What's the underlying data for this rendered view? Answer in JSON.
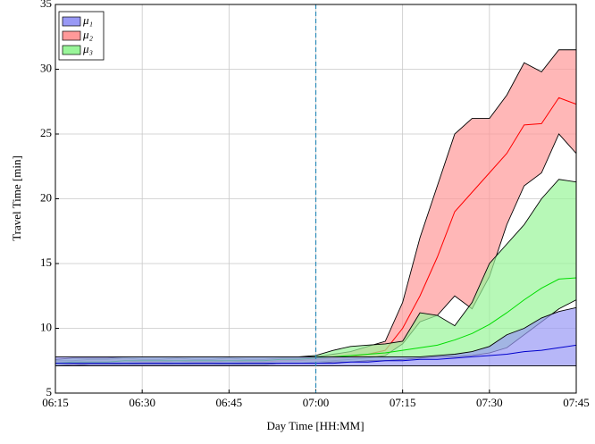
{
  "chart_data": {
    "type": "band",
    "x_label": "Day Time [HH:MM]",
    "y_label": "Travel Time [min]",
    "x": [
      "06:15",
      "06:18",
      "06:21",
      "06:24",
      "06:27",
      "06:30",
      "06:33",
      "06:36",
      "06:39",
      "06:42",
      "06:45",
      "06:48",
      "06:51",
      "06:54",
      "06:57",
      "07:00",
      "07:03",
      "07:06",
      "07:09",
      "07:12",
      "07:15",
      "07:18",
      "07:21",
      "07:24",
      "07:27",
      "07:30",
      "07:33",
      "07:36",
      "07:39",
      "07:42",
      "07:45"
    ],
    "xlim": [
      "06:15",
      "07:45"
    ],
    "xticks": [
      "06:15",
      "06:30",
      "06:45",
      "07:00",
      "07:15",
      "07:30",
      "07:45"
    ],
    "ylim": [
      5,
      35
    ],
    "yticks": [
      5,
      10,
      15,
      20,
      25,
      30,
      35
    ],
    "grid": true,
    "vline": "07:00",
    "legend": "upper-left",
    "series": [
      {
        "name": "μ₂",
        "color": "#ff0000",
        "fill": "#ff9999",
        "values": [
          7.3,
          7.3,
          7.4,
          7.4,
          7.5,
          7.4,
          7.4,
          7.5,
          7.4,
          7.4,
          7.5,
          7.4,
          7.4,
          7.5,
          7.5,
          7.6,
          7.7,
          7.8,
          8.0,
          8.3,
          10.0,
          12.5,
          15.5,
          19.0,
          20.5,
          22.0,
          23.5,
          25.7,
          25.8,
          27.8,
          27.3
        ],
        "upper": [
          7.5,
          7.5,
          7.6,
          7.6,
          7.7,
          7.6,
          7.6,
          7.7,
          7.6,
          7.6,
          7.7,
          7.6,
          7.6,
          7.7,
          7.7,
          7.8,
          8.0,
          8.2,
          8.6,
          9.0,
          12.0,
          17.0,
          21.0,
          25.0,
          26.2,
          26.2,
          28.0,
          30.5,
          29.8,
          31.5,
          31.5
        ],
        "lower": [
          7.1,
          7.1,
          7.2,
          7.2,
          7.3,
          7.2,
          7.2,
          7.3,
          7.2,
          7.2,
          7.3,
          7.2,
          7.2,
          7.3,
          7.3,
          7.4,
          7.5,
          7.6,
          7.7,
          7.9,
          8.8,
          10.5,
          11.0,
          12.5,
          11.5,
          14.0,
          18.0,
          21.0,
          22.0,
          25.0,
          23.5
        ]
      },
      {
        "name": "μ₃",
        "color": "#00dd00",
        "fill": "#99f599",
        "values": [
          7.3,
          7.4,
          7.4,
          7.4,
          7.5,
          7.5,
          7.5,
          7.5,
          7.5,
          7.5,
          7.5,
          7.5,
          7.5,
          7.6,
          7.6,
          7.7,
          7.8,
          7.9,
          8.0,
          8.1,
          8.3,
          8.5,
          8.7,
          9.1,
          9.6,
          10.3,
          11.2,
          12.2,
          13.1,
          13.8,
          13.9
        ],
        "upper": [
          7.6,
          7.7,
          7.7,
          7.7,
          7.8,
          7.8,
          7.8,
          7.8,
          7.8,
          7.8,
          7.8,
          7.8,
          7.8,
          7.8,
          7.8,
          7.9,
          8.3,
          8.6,
          8.7,
          8.8,
          9.0,
          11.2,
          11.0,
          10.2,
          12.0,
          15.0,
          16.5,
          18.0,
          20.0,
          21.5,
          21.3
        ],
        "lower": [
          7.1,
          7.2,
          7.2,
          7.2,
          7.2,
          7.2,
          7.2,
          7.2,
          7.2,
          7.2,
          7.2,
          7.2,
          7.2,
          7.3,
          7.3,
          7.3,
          7.4,
          7.4,
          7.5,
          7.5,
          7.6,
          7.7,
          7.8,
          7.8,
          7.9,
          8.1,
          8.5,
          9.5,
          10.5,
          11.5,
          12.2
        ]
      },
      {
        "name": "μ₁",
        "color": "#0000cc",
        "fill": "#9999f5",
        "values": [
          7.3,
          7.3,
          7.3,
          7.3,
          7.3,
          7.3,
          7.3,
          7.3,
          7.3,
          7.3,
          7.3,
          7.3,
          7.3,
          7.3,
          7.3,
          7.3,
          7.3,
          7.4,
          7.4,
          7.5,
          7.5,
          7.6,
          7.6,
          7.7,
          7.8,
          7.9,
          8.0,
          8.2,
          8.3,
          8.5,
          8.7
        ],
        "upper": [
          7.8,
          7.8,
          7.8,
          7.8,
          7.8,
          7.8,
          7.8,
          7.8,
          7.8,
          7.8,
          7.8,
          7.8,
          7.8,
          7.8,
          7.8,
          7.8,
          7.8,
          7.8,
          7.8,
          7.8,
          7.8,
          7.8,
          7.9,
          8.0,
          8.2,
          8.6,
          9.5,
          10.0,
          10.8,
          11.3,
          11.6
        ],
        "lower": [
          7.1,
          7.1,
          7.1,
          7.1,
          7.1,
          7.1,
          7.1,
          7.1,
          7.1,
          7.1,
          7.1,
          7.1,
          7.1,
          7.1,
          7.1,
          7.1,
          7.1,
          7.1,
          7.1,
          7.1,
          7.1,
          7.1,
          7.1,
          7.1,
          7.1,
          7.1,
          7.1,
          7.1,
          7.1,
          7.1,
          7.1
        ]
      }
    ]
  }
}
